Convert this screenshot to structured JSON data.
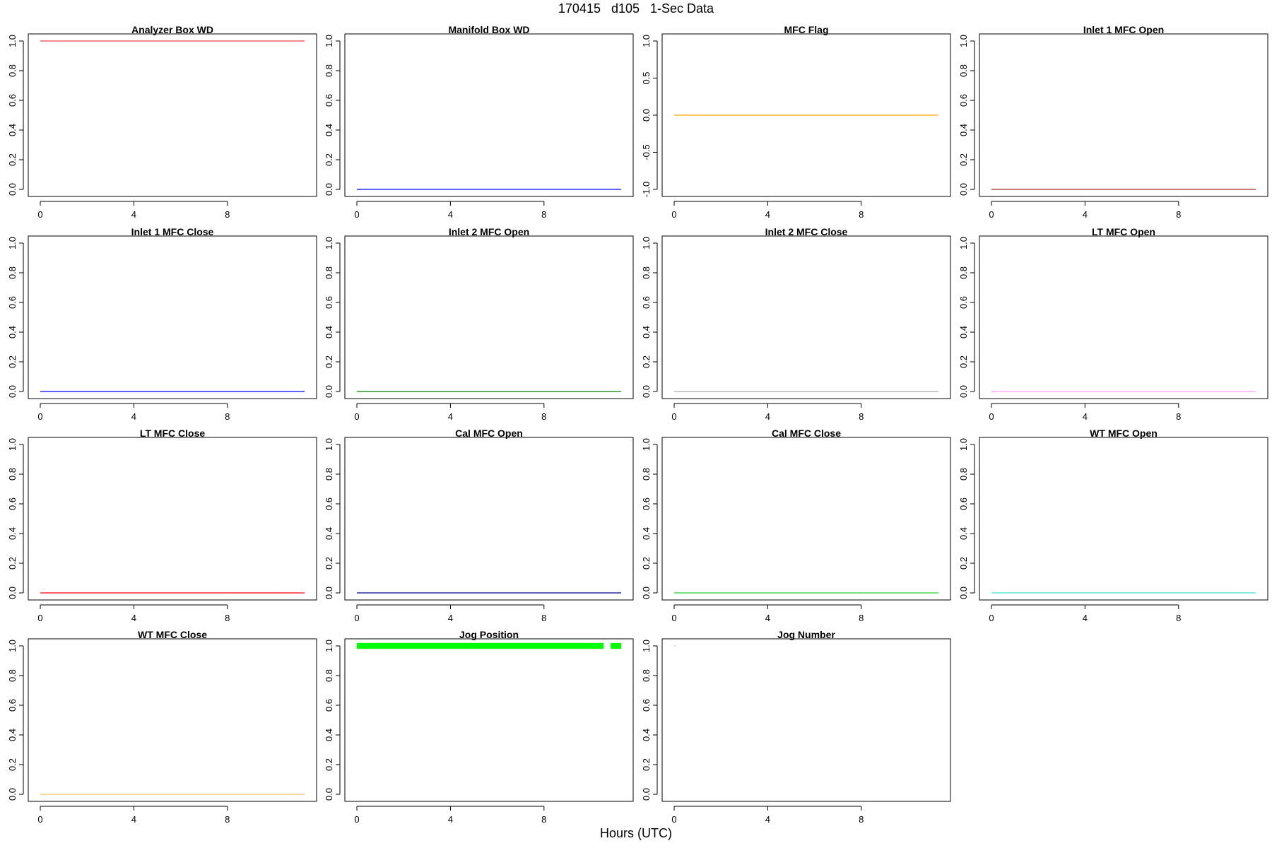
{
  "page": {
    "title": "170415   d105   1-Sec Data",
    "xlabel": "Hours (UTC)"
  },
  "chart_data": [
    {
      "type": "line",
      "title": "Analyzer Box WD",
      "color": "#ff4040",
      "x": [
        0,
        11.3
      ],
      "y": [
        1,
        1
      ],
      "xlim": [
        0,
        11.3
      ],
      "xticks": [
        0,
        4,
        8
      ],
      "ylim": [
        0,
        1
      ],
      "yticks": [
        0,
        0.2,
        0.4,
        0.6,
        0.8,
        1.0
      ],
      "ytick_labels": [
        "0.0",
        "0.2",
        "0.4",
        "0.6",
        "0.8",
        "1.0"
      ]
    },
    {
      "type": "line",
      "title": "Manifold Box WD",
      "color": "#0000ff",
      "x": [
        0,
        11.3
      ],
      "y": [
        0,
        0
      ],
      "xlim": [
        0,
        11.3
      ],
      "xticks": [
        0,
        4,
        8
      ],
      "ylim": [
        0,
        1
      ],
      "yticks": [
        0,
        0.2,
        0.4,
        0.6,
        0.8,
        1.0
      ],
      "ytick_labels": [
        "0.0",
        "0.2",
        "0.4",
        "0.6",
        "0.8",
        "1.0"
      ]
    },
    {
      "type": "line",
      "title": "MFC Flag",
      "color": "#ffa500",
      "x": [
        0,
        11.3
      ],
      "y": [
        0,
        0
      ],
      "xlim": [
        0,
        11.3
      ],
      "xticks": [
        0,
        4,
        8
      ],
      "ylim": [
        -1,
        1
      ],
      "yticks": [
        -1,
        -0.5,
        0,
        0.5,
        1.0
      ],
      "ytick_labels": [
        "-1.0",
        "-0.5",
        "0.0",
        "0.5",
        "1.0"
      ]
    },
    {
      "type": "line",
      "title": "Inlet 1 MFC Open",
      "color": "#a52a2a",
      "x": [
        0,
        11.3
      ],
      "y": [
        0,
        0
      ],
      "xlim": [
        0,
        11.3
      ],
      "xticks": [
        0,
        4,
        8
      ],
      "ylim": [
        0,
        1
      ],
      "yticks": [
        0,
        0.2,
        0.4,
        0.6,
        0.8,
        1.0
      ],
      "ytick_labels": [
        "0.0",
        "0.2",
        "0.4",
        "0.6",
        "0.8",
        "1.0"
      ]
    },
    {
      "type": "line",
      "title": "Inlet 1 MFC Close",
      "color": "#0000ff",
      "x": [
        0,
        11.3
      ],
      "y": [
        0,
        0
      ],
      "xlim": [
        0,
        11.3
      ],
      "xticks": [
        0,
        4,
        8
      ],
      "ylim": [
        0,
        1
      ],
      "yticks": [
        0,
        0.2,
        0.4,
        0.6,
        0.8,
        1.0
      ],
      "ytick_labels": [
        "0.0",
        "0.2",
        "0.4",
        "0.6",
        "0.8",
        "1.0"
      ]
    },
    {
      "type": "line",
      "title": "Inlet 2 MFC Open",
      "color": "#008000",
      "x": [
        0,
        11.3
      ],
      "y": [
        0,
        0
      ],
      "xlim": [
        0,
        11.3
      ],
      "xticks": [
        0,
        4,
        8
      ],
      "ylim": [
        0,
        1
      ],
      "yticks": [
        0,
        0.2,
        0.4,
        0.6,
        0.8,
        1.0
      ],
      "ytick_labels": [
        "0.0",
        "0.2",
        "0.4",
        "0.6",
        "0.8",
        "1.0"
      ]
    },
    {
      "type": "line",
      "title": "Inlet 2 MFC Close",
      "color": "#aaaaaa",
      "x": [
        0,
        11.3
      ],
      "y": [
        0,
        0
      ],
      "xlim": [
        0,
        11.3
      ],
      "xticks": [
        0,
        4,
        8
      ],
      "ylim": [
        0,
        1
      ],
      "yticks": [
        0,
        0.2,
        0.4,
        0.6,
        0.8,
        1.0
      ],
      "ytick_labels": [
        "0.0",
        "0.2",
        "0.4",
        "0.6",
        "0.8",
        "1.0"
      ]
    },
    {
      "type": "line",
      "title": "LT MFC Open",
      "color": "#ff99ff",
      "x": [
        0,
        11.3
      ],
      "y": [
        0,
        0
      ],
      "xlim": [
        0,
        11.3
      ],
      "xticks": [
        0,
        4,
        8
      ],
      "ylim": [
        0,
        1
      ],
      "yticks": [
        0,
        0.2,
        0.4,
        0.6,
        0.8,
        1.0
      ],
      "ytick_labels": [
        "0.0",
        "0.2",
        "0.4",
        "0.6",
        "0.8",
        "1.0"
      ]
    },
    {
      "type": "line",
      "title": "LT MFC Close",
      "color": "#ff0000",
      "x": [
        0,
        11.3
      ],
      "y": [
        0,
        0
      ],
      "xlim": [
        0,
        11.3
      ],
      "xticks": [
        0,
        4,
        8
      ],
      "ylim": [
        0,
        1
      ],
      "yticks": [
        0,
        0.2,
        0.4,
        0.6,
        0.8,
        1.0
      ],
      "ytick_labels": [
        "0.0",
        "0.2",
        "0.4",
        "0.6",
        "0.8",
        "1.0"
      ]
    },
    {
      "type": "line",
      "title": "Cal MFC Open",
      "color": "#00008b",
      "x": [
        0,
        11.3
      ],
      "y": [
        0,
        0
      ],
      "xlim": [
        0,
        11.3
      ],
      "xticks": [
        0,
        4,
        8
      ],
      "ylim": [
        0,
        1
      ],
      "yticks": [
        0,
        0.2,
        0.4,
        0.6,
        0.8,
        1.0
      ],
      "ytick_labels": [
        "0.0",
        "0.2",
        "0.4",
        "0.6",
        "0.8",
        "1.0"
      ]
    },
    {
      "type": "line",
      "title": "Cal MFC Close",
      "color": "#22cc22",
      "x": [
        0,
        11.3
      ],
      "y": [
        0,
        0
      ],
      "xlim": [
        0,
        11.3
      ],
      "xticks": [
        0,
        4,
        8
      ],
      "ylim": [
        0,
        1
      ],
      "yticks": [
        0,
        0.2,
        0.4,
        0.6,
        0.8,
        1.0
      ],
      "ytick_labels": [
        "0.0",
        "0.2",
        "0.4",
        "0.6",
        "0.8",
        "1.0"
      ]
    },
    {
      "type": "line",
      "title": "WT MFC Open",
      "color": "#40e0d0",
      "x": [
        0,
        11.3
      ],
      "y": [
        0,
        0
      ],
      "xlim": [
        0,
        11.3
      ],
      "xticks": [
        0,
        4,
        8
      ],
      "ylim": [
        0,
        1
      ],
      "yticks": [
        0,
        0.2,
        0.4,
        0.6,
        0.8,
        1.0
      ],
      "ytick_labels": [
        "0.0",
        "0.2",
        "0.4",
        "0.6",
        "0.8",
        "1.0"
      ]
    },
    {
      "type": "line",
      "title": "WT MFC Close",
      "color": "#f5c060",
      "x": [
        0,
        11.3
      ],
      "y": [
        0,
        0
      ],
      "xlim": [
        0,
        11.3
      ],
      "xticks": [
        0,
        4,
        8
      ],
      "ylim": [
        0,
        1
      ],
      "yticks": [
        0,
        0.2,
        0.4,
        0.6,
        0.8,
        1.0
      ],
      "ytick_labels": [
        "0.0",
        "0.2",
        "0.4",
        "0.6",
        "0.8",
        "1.0"
      ]
    },
    {
      "type": "area",
      "title": "Jog Position",
      "color": "#00ff00",
      "segments": [
        [
          0,
          10.55
        ],
        [
          10.85,
          11.3
        ]
      ],
      "y": [
        0.98,
        1.02
      ],
      "xlim": [
        0,
        11.3
      ],
      "xticks": [
        0,
        4,
        8
      ],
      "ylim": [
        0,
        1
      ],
      "yticks": [
        0,
        0.2,
        0.4,
        0.6,
        0.8,
        1.0
      ],
      "ytick_labels": [
        "0.0",
        "0.2",
        "0.4",
        "0.6",
        "0.8",
        "1.0"
      ]
    },
    {
      "type": "line",
      "title": "Jog Number",
      "color": "#87ceeb",
      "x": [
        0,
        0.05
      ],
      "y": [
        1,
        1
      ],
      "xlim": [
        0,
        11.3
      ],
      "xticks": [
        0,
        4,
        8
      ],
      "ylim": [
        0,
        1
      ],
      "yticks": [
        0,
        0.2,
        0.4,
        0.6,
        0.8,
        1.0
      ],
      "ytick_labels": [
        "0.0",
        "0.2",
        "0.4",
        "0.6",
        "0.8",
        "1.0"
      ]
    }
  ]
}
